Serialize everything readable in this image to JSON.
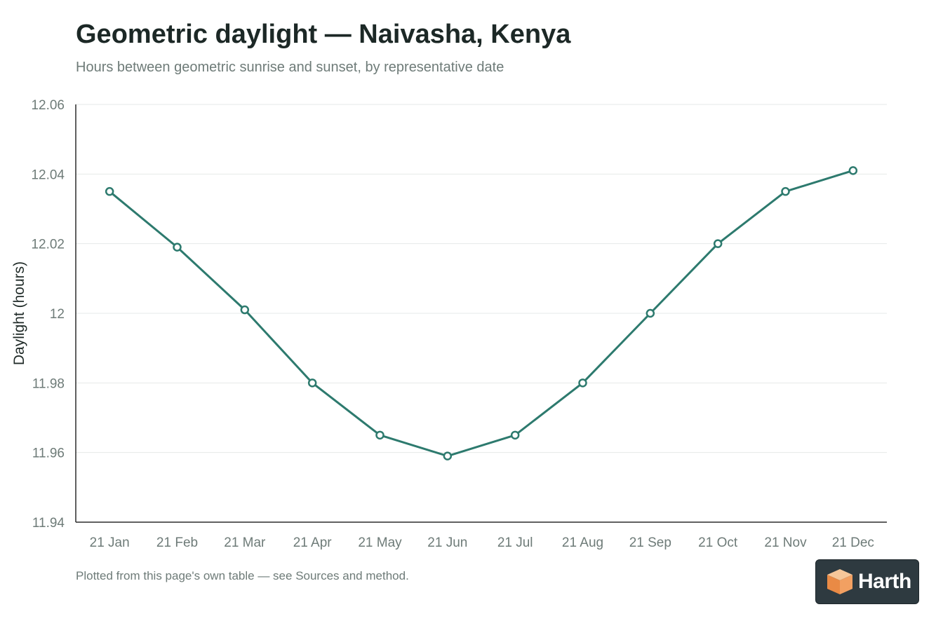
{
  "title": "Geometric daylight — Naivasha, Kenya",
  "subtitle": "Hours between geometric sunrise and sunset, by representative date",
  "footnote": "Plotted from this page's own table — see Sources and method.",
  "badge": {
    "label": "Harth",
    "icon": "cube-logo-icon"
  },
  "colors": {
    "line": "#2d7a6e",
    "grid": "#e6e9e8",
    "axis": "#2b2b2b",
    "tick_text": "#6e7b78"
  },
  "chart_data": {
    "type": "line",
    "categories": [
      "21 Jan",
      "21 Feb",
      "21 Mar",
      "21 Apr",
      "21 May",
      "21 Jun",
      "21 Jul",
      "21 Aug",
      "21 Sep",
      "21 Oct",
      "21 Nov",
      "21 Dec"
    ],
    "values": [
      12.035,
      12.019,
      12.001,
      11.98,
      11.965,
      11.959,
      11.965,
      11.98,
      12.0,
      12.02,
      12.035,
      12.041
    ],
    "ylabel": "Daylight (hours)",
    "xlabel": "",
    "ylim": [
      11.94,
      12.06
    ],
    "yticks": [
      "11.94",
      "11.96",
      "11.98",
      "12",
      "12.02",
      "12.04",
      "12.06"
    ],
    "grid": true
  }
}
